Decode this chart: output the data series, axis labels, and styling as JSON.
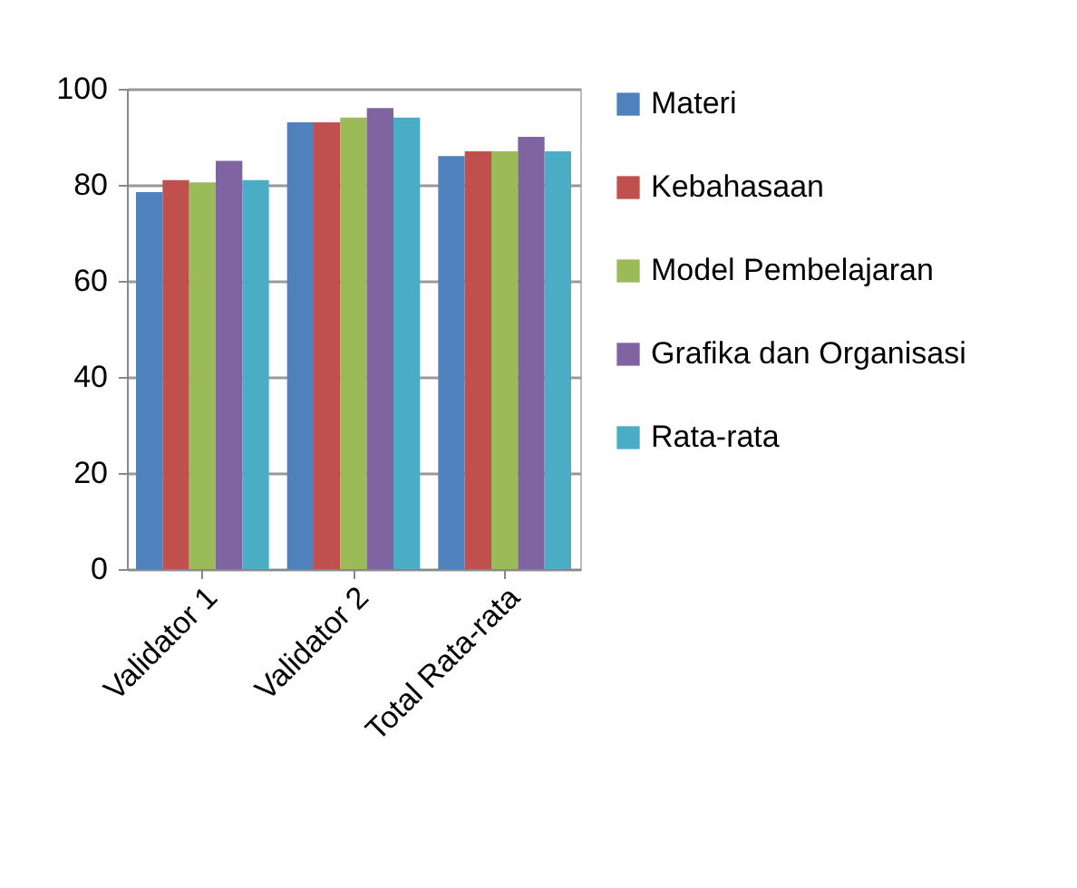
{
  "chart_data": {
    "type": "bar",
    "categories": [
      "Validator 1",
      "Validator 2",
      "Total Rata-rata"
    ],
    "series": [
      {
        "name": "Materi",
        "color": "#4f81bd",
        "values": [
          78.5,
          93,
          86
        ]
      },
      {
        "name": "Kebahasaan",
        "color": "#c0504d",
        "values": [
          81,
          93,
          87
        ]
      },
      {
        "name": "Model Pembelajaran",
        "color": "#9bbb59",
        "values": [
          80.5,
          94,
          87
        ]
      },
      {
        "name": "Grafika dan Organisasi",
        "color": "#8064a2",
        "values": [
          85,
          96,
          90
        ]
      },
      {
        "name": "Rata-rata",
        "color": "#4bacc6",
        "values": [
          81,
          94,
          87
        ]
      }
    ],
    "ylim": [
      0,
      100
    ],
    "yticks": [
      0,
      20,
      40,
      60,
      80,
      100
    ],
    "grid": "y",
    "legend": "right"
  }
}
